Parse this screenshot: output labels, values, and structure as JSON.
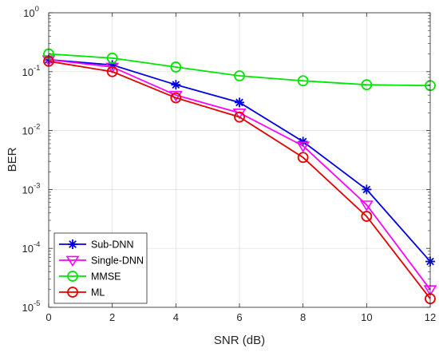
{
  "chart_data": {
    "type": "line",
    "title": "",
    "xlabel": "SNR (dB)",
    "ylabel": "BER",
    "xlim": [
      0,
      12
    ],
    "ylim": [
      1e-05,
      1
    ],
    "yscale": "log",
    "x_ticks": [
      0,
      2,
      4,
      6,
      8,
      10,
      12
    ],
    "y_ticks": [
      {
        "value": 1e-05,
        "base": "10",
        "exp": "-5"
      },
      {
        "value": 0.0001,
        "base": "10",
        "exp": "-4"
      },
      {
        "value": 0.001,
        "base": "10",
        "exp": "-3"
      },
      {
        "value": 0.01,
        "base": "10",
        "exp": "-2"
      },
      {
        "value": 0.1,
        "base": "10",
        "exp": "-1"
      },
      {
        "value": 1,
        "base": "10",
        "exp": "0"
      }
    ],
    "grid": true,
    "legend_position": "bottom-left",
    "x": [
      0,
      2,
      4,
      6,
      8,
      10,
      12
    ],
    "series": [
      {
        "name": "Sub-DNN",
        "color": "#0000e6",
        "marker": "asterisk",
        "values": [
          0.16,
          0.13,
          0.06,
          0.03,
          0.0065,
          0.001,
          6e-05
        ]
      },
      {
        "name": "Single-DNN",
        "color": "#ff00ff",
        "marker": "triangle-down",
        "values": [
          0.16,
          0.12,
          0.04,
          0.02,
          0.0055,
          0.00055,
          2e-05
        ]
      },
      {
        "name": "MMSE",
        "color": "#00e600",
        "marker": "circle",
        "values": [
          0.2,
          0.17,
          0.12,
          0.085,
          0.07,
          0.06,
          0.058
        ]
      },
      {
        "name": "ML",
        "color": "#e60000",
        "marker": "circle",
        "values": [
          0.15,
          0.1,
          0.036,
          0.017,
          0.0035,
          0.00035,
          1.4e-05
        ]
      }
    ]
  }
}
